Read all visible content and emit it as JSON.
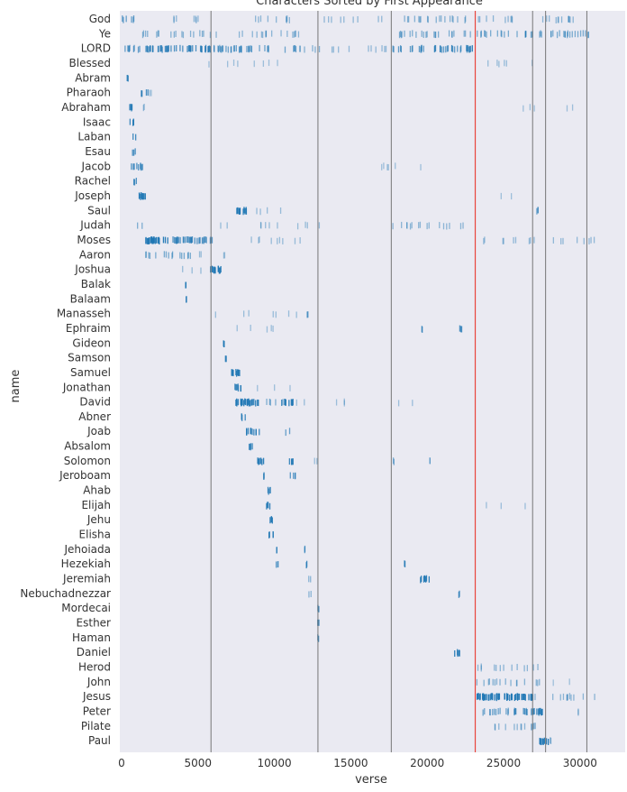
{
  "chart_data": {
    "type": "scatter",
    "title": "Characters Sorted by First Appearance",
    "xlabel": "verse",
    "ylabel": "name",
    "xlim": [
      0,
      32800
    ],
    "xticks": [
      0,
      5000,
      10000,
      15000,
      20000,
      25000,
      30000
    ],
    "grid": false,
    "point_color": "#1f77b4",
    "background_color": "#eaeaf2",
    "divider_color": "#777777",
    "highlight_color": "#e8453c",
    "book_dividers": [
      5850,
      12850,
      17650,
      26900,
      27750,
      30450
    ],
    "testament_divider": 23145,
    "names": [
      "God",
      "Ye",
      "LORD",
      "Blessed",
      "Abram",
      "Pharaoh",
      "Abraham",
      "Isaac",
      "Laban",
      "Esau",
      "Jacob",
      "Rachel",
      "Joseph",
      "Saul",
      "Judah",
      "Moses",
      "Aaron",
      "Joshua",
      "Balak",
      "Balaam",
      "Manasseh",
      "Ephraim",
      "Gideon",
      "Samson",
      "Samuel",
      "Jonathan",
      "David",
      "Abner",
      "Joab",
      "Absalom",
      "Solomon",
      "Jeroboam",
      "Ahab",
      "Elijah",
      "Jehu",
      "Elisha",
      "Jehoiada",
      "Hezekiah",
      "Jeremiah",
      "Nebuchadnezzar",
      "Mordecai",
      "Esther",
      "Haman",
      "Daniel",
      "Herod",
      "John",
      "Jesus",
      "Peter",
      "Pilate",
      "Paul"
    ],
    "series": [
      {
        "name": "God",
        "clusters": [
          [
            0,
            800,
            0.5
          ],
          [
            2800,
            5000,
            0.2
          ],
          [
            8000,
            11000,
            0.2
          ],
          [
            13000,
            17000,
            0.15
          ],
          [
            18000,
            23000,
            0.25
          ],
          [
            23200,
            30000,
            0.2
          ]
        ]
      },
      {
        "name": "Ye",
        "clusters": [
          [
            1000,
            5800,
            0.25
          ],
          [
            6000,
            12000,
            0.2
          ],
          [
            18000,
            23000,
            0.3
          ],
          [
            23200,
            31000,
            0.35
          ]
        ]
      },
      {
        "name": "LORD",
        "clusters": [
          [
            0,
            1200,
            0.5
          ],
          [
            1500,
            5800,
            0.7
          ],
          [
            6000,
            11500,
            0.45
          ],
          [
            11500,
            13000,
            0.25
          ],
          [
            13000,
            17500,
            0.15
          ],
          [
            17700,
            23000,
            0.55
          ]
        ]
      },
      {
        "name": "Blessed",
        "clusters": [
          [
            5000,
            15000,
            0.05
          ],
          [
            23200,
            27000,
            0.1
          ]
        ]
      },
      {
        "name": "Abram",
        "clusters": [
          [
            300,
            450,
            0.9
          ]
        ]
      },
      {
        "name": "Pharaoh",
        "clusters": [
          [
            1200,
            1700,
            0.7
          ],
          [
            1700,
            2400,
            0.1
          ]
        ]
      },
      {
        "name": "Abraham",
        "clusters": [
          [
            400,
            700,
            0.9
          ],
          [
            700,
            1600,
            0.15
          ],
          [
            25000,
            31000,
            0.05
          ]
        ]
      },
      {
        "name": "Isaac",
        "clusters": [
          [
            500,
            800,
            0.8
          ]
        ]
      },
      {
        "name": "Laban",
        "clusters": [
          [
            700,
            900,
            0.8
          ]
        ]
      },
      {
        "name": "Esau",
        "clusters": [
          [
            650,
            950,
            0.7
          ]
        ]
      },
      {
        "name": "Jacob",
        "clusters": [
          [
            600,
            1400,
            0.7
          ],
          [
            14000,
            22000,
            0.05
          ]
        ]
      },
      {
        "name": "Rachel",
        "clusters": [
          [
            700,
            950,
            0.7
          ]
        ]
      },
      {
        "name": "Joseph",
        "clusters": [
          [
            1000,
            1600,
            0.95
          ],
          [
            24500,
            25500,
            0.05
          ]
        ]
      },
      {
        "name": "Saul",
        "clusters": [
          [
            7400,
            8200,
            0.95
          ],
          [
            8200,
            10600,
            0.1
          ],
          [
            27000,
            27500,
            0.4
          ]
        ]
      },
      {
        "name": "Judah",
        "clusters": [
          [
            1000,
            1500,
            0.3
          ],
          [
            6000,
            13000,
            0.1
          ],
          [
            17700,
            23000,
            0.2
          ]
        ]
      },
      {
        "name": "Moses",
        "clusters": [
          [
            1500,
            3000,
            1.0
          ],
          [
            3000,
            5600,
            0.7
          ],
          [
            5600,
            6000,
            0.6
          ],
          [
            6000,
            12000,
            0.1
          ],
          [
            23500,
            31000,
            0.15
          ]
        ]
      },
      {
        "name": "Aaron",
        "clusters": [
          [
            1500,
            4500,
            0.35
          ],
          [
            4500,
            7000,
            0.1
          ]
        ]
      },
      {
        "name": "Joshua",
        "clusters": [
          [
            3500,
            5500,
            0.1
          ],
          [
            5700,
            6500,
            0.95
          ]
        ]
      },
      {
        "name": "Balak",
        "clusters": [
          [
            4150,
            4300,
            0.9
          ]
        ]
      },
      {
        "name": "Balaam",
        "clusters": [
          [
            4150,
            4300,
            0.9
          ]
        ]
      },
      {
        "name": "Manasseh",
        "clusters": [
          [
            6000,
            12000,
            0.08
          ],
          [
            12000,
            12200,
            0.5
          ]
        ]
      },
      {
        "name": "Ephraim",
        "clusters": [
          [
            6000,
            12000,
            0.06
          ],
          [
            19500,
            19700,
            0.6
          ],
          [
            22000,
            22300,
            0.7
          ]
        ]
      },
      {
        "name": "Gideon",
        "clusters": [
          [
            6500,
            6700,
            0.9
          ]
        ]
      },
      {
        "name": "Samson",
        "clusters": [
          [
            6750,
            6900,
            0.9
          ]
        ]
      },
      {
        "name": "Samuel",
        "clusters": [
          [
            7000,
            7700,
            0.95
          ]
        ]
      },
      {
        "name": "Jonathan",
        "clusters": [
          [
            7200,
            7800,
            0.8
          ],
          [
            7800,
            11500,
            0.05
          ]
        ]
      },
      {
        "name": "David",
        "clusters": [
          [
            7400,
            9000,
            1.0
          ],
          [
            9000,
            10600,
            0.3
          ],
          [
            10600,
            11300,
            0.9
          ],
          [
            11300,
            12800,
            0.1
          ],
          [
            13000,
            19000,
            0.06
          ]
        ]
      },
      {
        "name": "Abner",
        "clusters": [
          [
            7800,
            8100,
            0.8
          ]
        ]
      },
      {
        "name": "Joab",
        "clusters": [
          [
            8100,
            9000,
            0.8
          ],
          [
            10700,
            11000,
            0.5
          ]
        ]
      },
      {
        "name": "Absalom",
        "clusters": [
          [
            8300,
            8600,
            0.9
          ]
        ]
      },
      {
        "name": "Solomon",
        "clusters": [
          [
            8800,
            9300,
            0.95
          ],
          [
            10900,
            11300,
            0.8
          ],
          [
            11300,
            13000,
            0.06
          ],
          [
            17700,
            18000,
            0.3
          ],
          [
            20000,
            20200,
            0.2
          ]
        ]
      },
      {
        "name": "Jeroboam",
        "clusters": [
          [
            9200,
            9500,
            0.7
          ],
          [
            11000,
            11400,
            0.6
          ]
        ]
      },
      {
        "name": "Ahab",
        "clusters": [
          [
            9400,
            9700,
            0.9
          ]
        ]
      },
      {
        "name": "Elijah",
        "clusters": [
          [
            9400,
            9700,
            0.9
          ],
          [
            23500,
            26500,
            0.06
          ]
        ]
      },
      {
        "name": "Jehu",
        "clusters": [
          [
            9600,
            9900,
            0.9
          ]
        ]
      },
      {
        "name": "Elisha",
        "clusters": [
          [
            9600,
            9900,
            0.9
          ]
        ]
      },
      {
        "name": "Jehoiada",
        "clusters": [
          [
            10000,
            10200,
            0.7
          ],
          [
            11800,
            12000,
            0.6
          ]
        ]
      },
      {
        "name": "Hezekiah",
        "clusters": [
          [
            10000,
            10200,
            0.8
          ],
          [
            11900,
            12100,
            0.8
          ],
          [
            18400,
            18600,
            0.8
          ]
        ]
      },
      {
        "name": "Jeremiah",
        "clusters": [
          [
            19500,
            20100,
            0.9
          ],
          [
            12000,
            12400,
            0.2
          ]
        ]
      },
      {
        "name": "Nebuchadnezzar",
        "clusters": [
          [
            12100,
            12700,
            0.2
          ],
          [
            21900,
            22100,
            0.7
          ]
        ]
      },
      {
        "name": "Mordecai",
        "clusters": [
          [
            12800,
            12900,
            0.95
          ]
        ]
      },
      {
        "name": "Esther",
        "clusters": [
          [
            12800,
            12900,
            0.95
          ]
        ]
      },
      {
        "name": "Haman",
        "clusters": [
          [
            12800,
            12900,
            0.95
          ]
        ]
      },
      {
        "name": "Daniel",
        "clusters": [
          [
            21750,
            22100,
            0.95
          ]
        ]
      },
      {
        "name": "Herod",
        "clusters": [
          [
            23200,
            27500,
            0.2
          ]
        ]
      },
      {
        "name": "John",
        "clusters": [
          [
            23200,
            27400,
            0.25
          ],
          [
            28000,
            30000,
            0.03
          ]
        ]
      },
      {
        "name": "Jesus",
        "clusters": [
          [
            23200,
            27000,
            1.0
          ],
          [
            27000,
            31000,
            0.2
          ]
        ]
      },
      {
        "name": "Peter",
        "clusters": [
          [
            23300,
            26900,
            0.45
          ],
          [
            26900,
            27600,
            0.9
          ],
          [
            29500,
            30000,
            0.1
          ]
        ]
      },
      {
        "name": "Pilate",
        "clusters": [
          [
            23400,
            26900,
            0.2
          ],
          [
            26900,
            27100,
            0.5
          ]
        ]
      },
      {
        "name": "Paul",
        "clusters": [
          [
            27300,
            27900,
            1.0
          ],
          [
            27900,
            28200,
            0.2
          ]
        ]
      }
    ]
  }
}
